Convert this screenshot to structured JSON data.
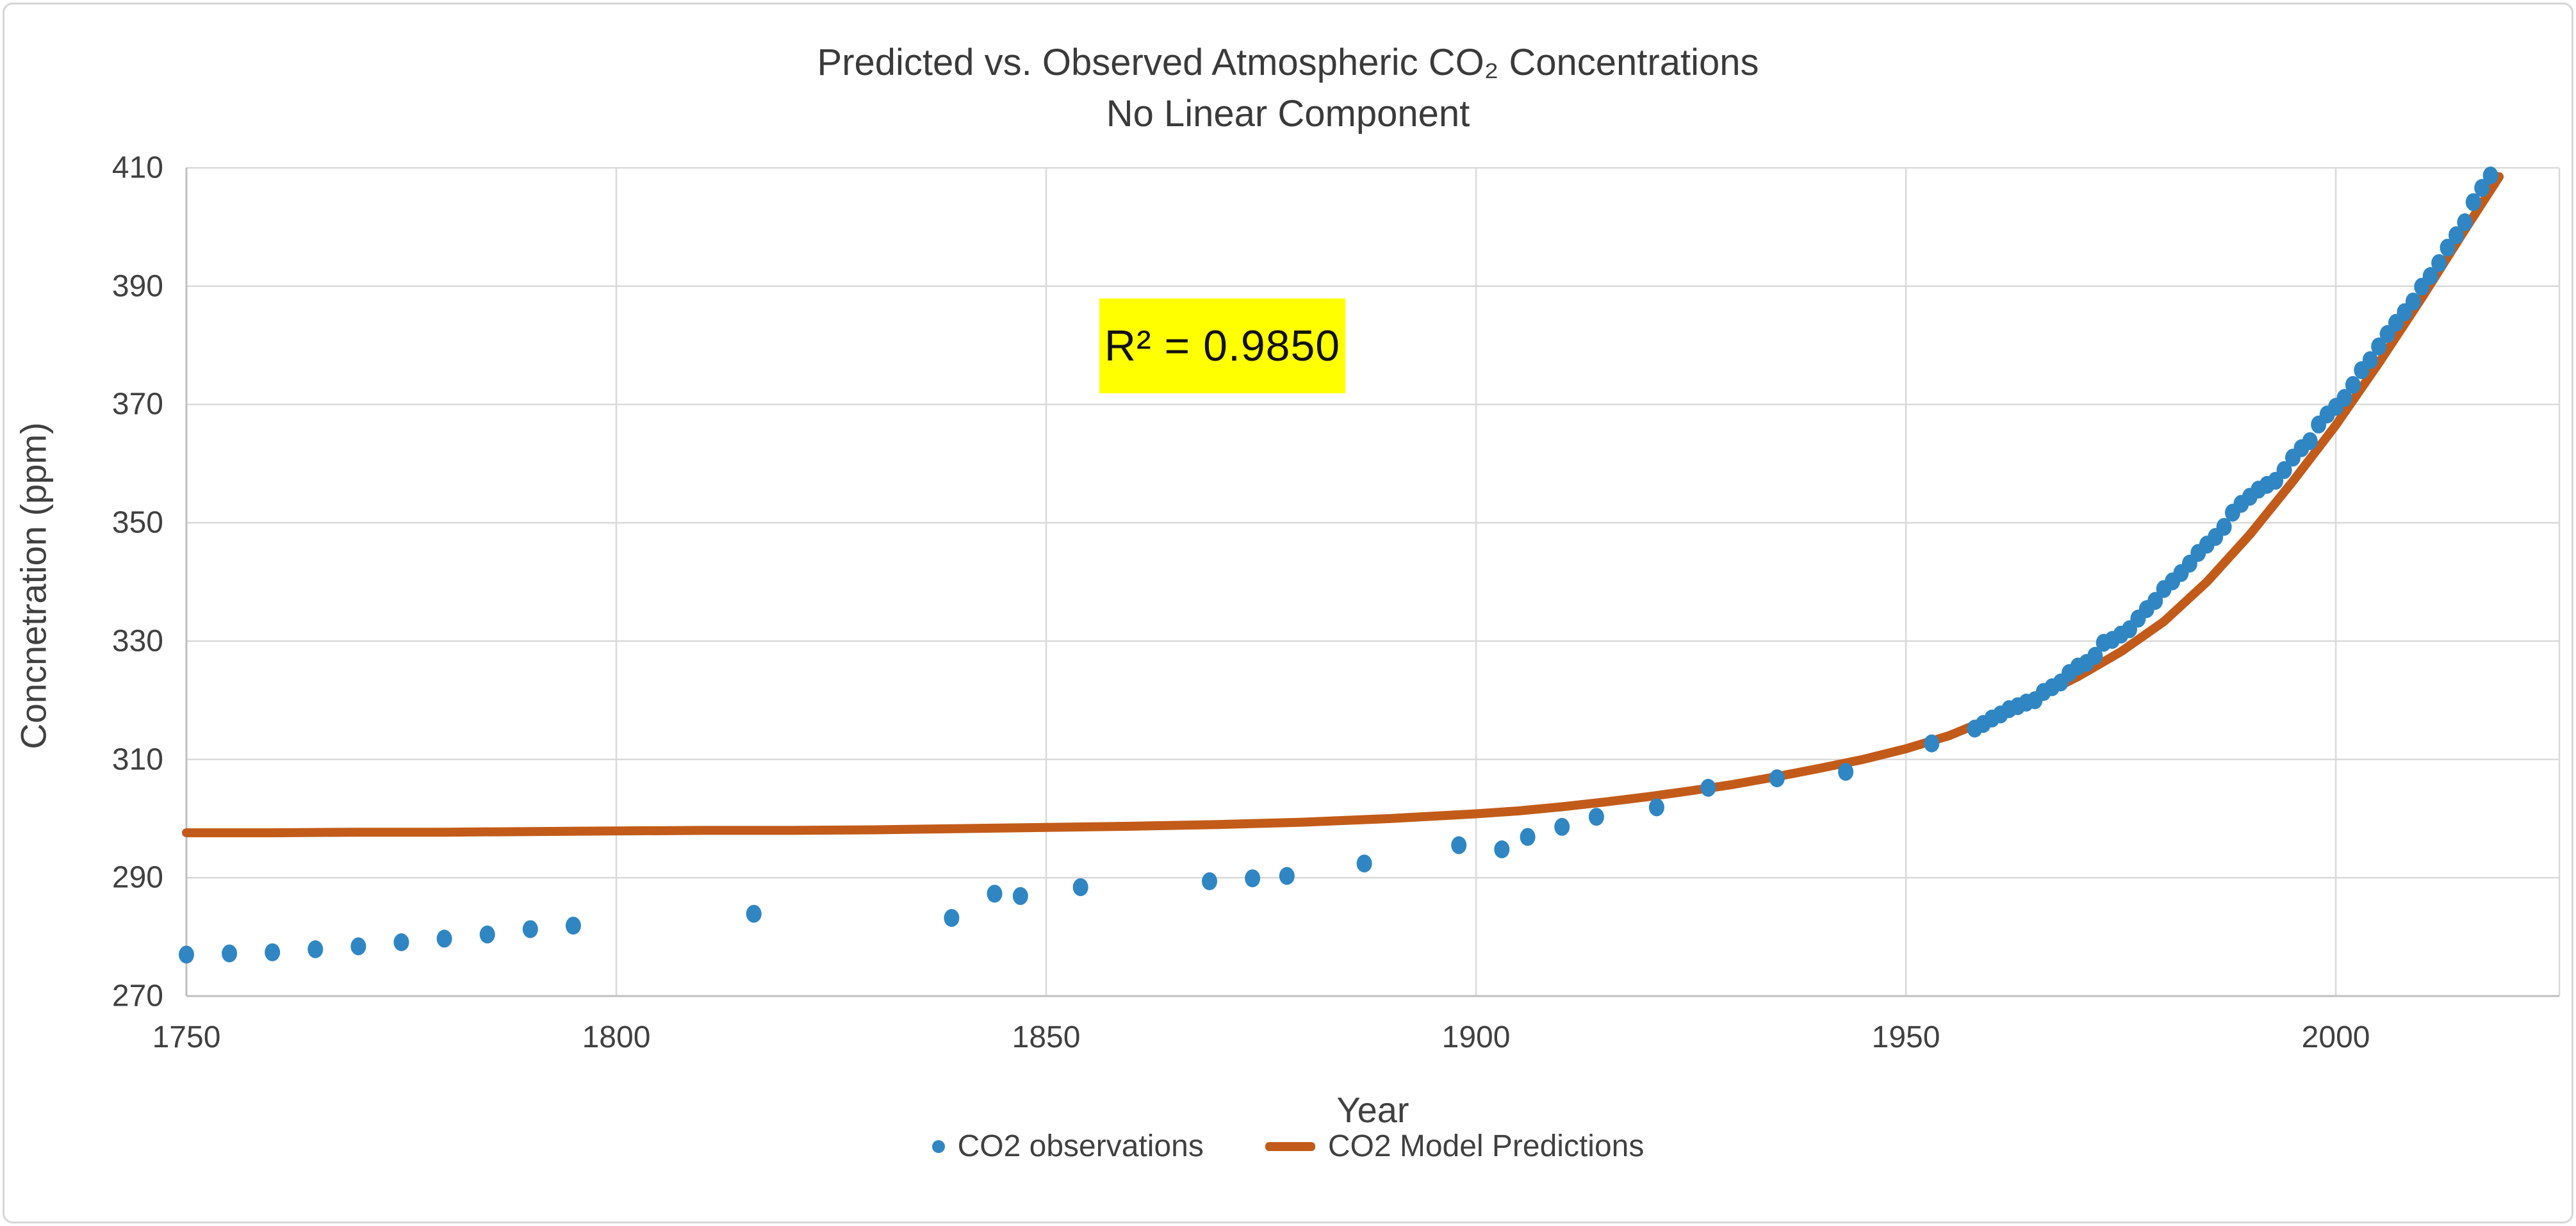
{
  "chart_data": {
    "type": "scatter+line",
    "title_line1": "Predicted vs. Observed Atmospheric CO₂ Concentrations",
    "title_line2": "No Linear Component",
    "annotation": "R² = 0.9850",
    "annotation_bg": "#ffff00",
    "xlabel": "Year",
    "ylabel": "Concnetration (ppm)",
    "xlim": [
      1750,
      2026
    ],
    "ylim": [
      270,
      410
    ],
    "x_ticks": [
      1750,
      1800,
      1850,
      1900,
      1950,
      2000
    ],
    "y_ticks": [
      270,
      290,
      310,
      330,
      350,
      370,
      390,
      410
    ],
    "grid": true,
    "legend_position": "bottom",
    "colors": {
      "gridline": "#d9d9d9",
      "axis_line": "#bfbfbf",
      "tick_text": "#404040",
      "observations": "#2f86c3",
      "model": "#c25b19"
    },
    "series": [
      {
        "name": "CO2 observations",
        "type": "scatter",
        "color": "#2f86c3",
        "points": [
          [
            1750,
            277.0
          ],
          [
            1755,
            277.2
          ],
          [
            1760,
            277.4
          ],
          [
            1765,
            277.9
          ],
          [
            1770,
            278.4
          ],
          [
            1775,
            279.1
          ],
          [
            1780,
            279.7
          ],
          [
            1785,
            280.4
          ],
          [
            1790,
            281.3
          ],
          [
            1795,
            281.9
          ],
          [
            1816,
            283.9
          ],
          [
            1839,
            283.2
          ],
          [
            1844,
            287.3
          ],
          [
            1847,
            286.9
          ],
          [
            1854,
            288.4
          ],
          [
            1869,
            289.4
          ],
          [
            1874,
            289.9
          ],
          [
            1878,
            290.3
          ],
          [
            1887,
            292.4
          ],
          [
            1898,
            295.5
          ],
          [
            1903,
            294.8
          ],
          [
            1906,
            296.9
          ],
          [
            1910,
            298.6
          ],
          [
            1914,
            300.3
          ],
          [
            1921,
            301.9
          ],
          [
            1927,
            305.2
          ],
          [
            1935,
            306.8
          ],
          [
            1943,
            307.9
          ],
          [
            1953,
            312.7
          ],
          [
            1958,
            315.2
          ],
          [
            1959,
            316.0
          ],
          [
            1960,
            316.9
          ],
          [
            1961,
            317.6
          ],
          [
            1962,
            318.5
          ],
          [
            1963,
            319.0
          ],
          [
            1964,
            319.6
          ],
          [
            1965,
            320.0
          ],
          [
            1966,
            321.4
          ],
          [
            1967,
            322.2
          ],
          [
            1968,
            323.0
          ],
          [
            1969,
            324.6
          ],
          [
            1970,
            325.7
          ],
          [
            1971,
            326.3
          ],
          [
            1972,
            327.5
          ],
          [
            1973,
            329.7
          ],
          [
            1974,
            330.2
          ],
          [
            1975,
            331.1
          ],
          [
            1976,
            332.0
          ],
          [
            1977,
            333.8
          ],
          [
            1978,
            335.4
          ],
          [
            1979,
            336.8
          ],
          [
            1980,
            338.8
          ],
          [
            1981,
            340.1
          ],
          [
            1982,
            341.5
          ],
          [
            1983,
            343.1
          ],
          [
            1984,
            344.9
          ],
          [
            1985,
            346.3
          ],
          [
            1986,
            347.6
          ],
          [
            1987,
            349.3
          ],
          [
            1988,
            351.7
          ],
          [
            1989,
            353.2
          ],
          [
            1990,
            354.4
          ],
          [
            1991,
            355.6
          ],
          [
            1992,
            356.4
          ],
          [
            1993,
            357.1
          ],
          [
            1994,
            358.9
          ],
          [
            1995,
            361.0
          ],
          [
            1996,
            362.6
          ],
          [
            1997,
            363.8
          ],
          [
            1998,
            366.6
          ],
          [
            1999,
            368.3
          ],
          [
            2000,
            369.6
          ],
          [
            2001,
            371.1
          ],
          [
            2002,
            373.3
          ],
          [
            2003,
            375.8
          ],
          [
            2004,
            377.5
          ],
          [
            2005,
            379.8
          ],
          [
            2006,
            381.9
          ],
          [
            2007,
            383.8
          ],
          [
            2008,
            385.6
          ],
          [
            2009,
            387.4
          ],
          [
            2010,
            389.9
          ],
          [
            2011,
            391.7
          ],
          [
            2012,
            393.9
          ],
          [
            2013,
            396.5
          ],
          [
            2014,
            398.6
          ],
          [
            2015,
            400.8
          ],
          [
            2016,
            404.2
          ],
          [
            2017,
            406.6
          ],
          [
            2018,
            408.7
          ]
        ]
      },
      {
        "name": "CO2 Model Predictions",
        "type": "line",
        "color": "#c25b19",
        "points": [
          [
            1750,
            297.6
          ],
          [
            1760,
            297.6
          ],
          [
            1770,
            297.7
          ],
          [
            1780,
            297.7
          ],
          [
            1790,
            297.8
          ],
          [
            1800,
            297.9
          ],
          [
            1810,
            298.0
          ],
          [
            1820,
            298.0
          ],
          [
            1830,
            298.1
          ],
          [
            1840,
            298.3
          ],
          [
            1850,
            298.5
          ],
          [
            1860,
            298.7
          ],
          [
            1870,
            299.0
          ],
          [
            1880,
            299.4
          ],
          [
            1890,
            300.0
          ],
          [
            1900,
            300.8
          ],
          [
            1905,
            301.3
          ],
          [
            1910,
            302.0
          ],
          [
            1915,
            302.8
          ],
          [
            1920,
            303.7
          ],
          [
            1925,
            304.7
          ],
          [
            1930,
            305.8
          ],
          [
            1935,
            307.1
          ],
          [
            1940,
            308.5
          ],
          [
            1945,
            310.0
          ],
          [
            1950,
            311.8
          ],
          [
            1955,
            314.0
          ],
          [
            1960,
            317.0
          ],
          [
            1965,
            320.3
          ],
          [
            1970,
            324.0
          ],
          [
            1975,
            328.2
          ],
          [
            1980,
            333.3
          ],
          [
            1985,
            340.0
          ],
          [
            1990,
            348.0
          ],
          [
            1995,
            357.0
          ],
          [
            2000,
            366.5
          ],
          [
            2005,
            377.0
          ],
          [
            2010,
            388.0
          ],
          [
            2015,
            399.5
          ],
          [
            2019,
            408.5
          ]
        ]
      }
    ]
  }
}
